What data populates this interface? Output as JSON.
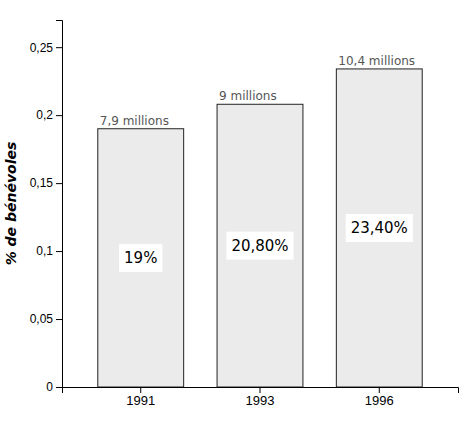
{
  "chart_data": {
    "type": "bar",
    "categories": [
      "1991",
      "1993",
      "1996"
    ],
    "values": [
      0.19,
      0.208,
      0.234
    ],
    "value_labels": [
      "19%",
      "20,80%",
      "23,40%"
    ],
    "data_labels": true,
    "annotations": [
      "7,9 millions",
      "9 millions",
      "10,4 millions"
    ],
    "color": "#ebebeb",
    "y_label": "% de bénévoles",
    "ylim": [
      0,
      0.27
    ],
    "yticks": [
      0,
      {
        "value": 0.05,
        "label": "0,05"
      },
      {
        "value": 0.1,
        "label": "0,1"
      },
      {
        "value": 0.15,
        "label": "0,15"
      },
      {
        "value": 0.2,
        "label": "0,2"
      },
      {
        "value": 0.25,
        "label": "0,25"
      }
    ],
    "grid": false
  }
}
